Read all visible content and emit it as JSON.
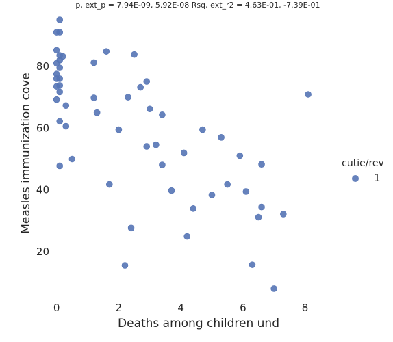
{
  "chart_data": {
    "type": "scatter",
    "title": "p, ext_p = 7.94E-09, 5.92E-08 Rsq, ext_r2 = 4.63E-01, -7.39E-01",
    "xlabel": "Deaths among children und",
    "ylabel": "Measles immunization cove",
    "x_ticks": [
      0,
      2,
      4,
      6,
      8
    ],
    "y_ticks": [
      20,
      40,
      60,
      80
    ],
    "xlim": [
      -0.5,
      9.2
    ],
    "ylim": [
      3,
      97
    ],
    "grid": false,
    "legend": {
      "title": "cutie/rev",
      "placement": "right",
      "entries": [
        "1"
      ]
    },
    "series": [
      {
        "name": "1",
        "color": "#5574b5",
        "points": [
          {
            "x": 0.1,
            "y": 95
          },
          {
            "x": 0.0,
            "y": 91
          },
          {
            "x": 0.1,
            "y": 91
          },
          {
            "x": 0.0,
            "y": 85.2
          },
          {
            "x": 0.1,
            "y": 83.5
          },
          {
            "x": 0.2,
            "y": 83.2
          },
          {
            "x": 0.1,
            "y": 82
          },
          {
            "x": 0.0,
            "y": 81
          },
          {
            "x": 0.1,
            "y": 79.5
          },
          {
            "x": 0.0,
            "y": 77.5
          },
          {
            "x": 0.0,
            "y": 76
          },
          {
            "x": 0.1,
            "y": 76
          },
          {
            "x": 0.0,
            "y": 73.5
          },
          {
            "x": 0.1,
            "y": 73.8
          },
          {
            "x": 0.1,
            "y": 71.7
          },
          {
            "x": 0.0,
            "y": 69.2
          },
          {
            "x": 0.3,
            "y": 67.3
          },
          {
            "x": 0.1,
            "y": 62.2
          },
          {
            "x": 0.3,
            "y": 60.6
          },
          {
            "x": 0.5,
            "y": 50
          },
          {
            "x": 0.1,
            "y": 47.8
          },
          {
            "x": 1.2,
            "y": 81.2
          },
          {
            "x": 1.6,
            "y": 84.8
          },
          {
            "x": 1.2,
            "y": 69.8
          },
          {
            "x": 1.3,
            "y": 65
          },
          {
            "x": 1.7,
            "y": 41.8
          },
          {
            "x": 2.5,
            "y": 83.8
          },
          {
            "x": 2.9,
            "y": 75.1
          },
          {
            "x": 2.7,
            "y": 73.2
          },
          {
            "x": 2.3,
            "y": 70
          },
          {
            "x": 3.0,
            "y": 66.2
          },
          {
            "x": 3.4,
            "y": 64.3
          },
          {
            "x": 2.0,
            "y": 59.5
          },
          {
            "x": 2.9,
            "y": 54.1
          },
          {
            "x": 3.2,
            "y": 54.6
          },
          {
            "x": 3.4,
            "y": 48.1
          },
          {
            "x": 3.7,
            "y": 39.8
          },
          {
            "x": 2.4,
            "y": 27.7
          },
          {
            "x": 2.2,
            "y": 15.6
          },
          {
            "x": 4.7,
            "y": 59.5
          },
          {
            "x": 5.3,
            "y": 57
          },
          {
            "x": 4.1,
            "y": 52
          },
          {
            "x": 5.5,
            "y": 41.8
          },
          {
            "x": 5.0,
            "y": 38.4
          },
          {
            "x": 4.4,
            "y": 34
          },
          {
            "x": 4.2,
            "y": 25
          },
          {
            "x": 5.9,
            "y": 51.1
          },
          {
            "x": 6.6,
            "y": 48.3
          },
          {
            "x": 6.1,
            "y": 39.5
          },
          {
            "x": 6.6,
            "y": 34.5
          },
          {
            "x": 6.5,
            "y": 31.2
          },
          {
            "x": 6.3,
            "y": 15.8
          },
          {
            "x": 7.3,
            "y": 32.2
          },
          {
            "x": 7.0,
            "y": 8.1
          },
          {
            "x": 8.1,
            "y": 70.9
          }
        ]
      }
    ]
  }
}
